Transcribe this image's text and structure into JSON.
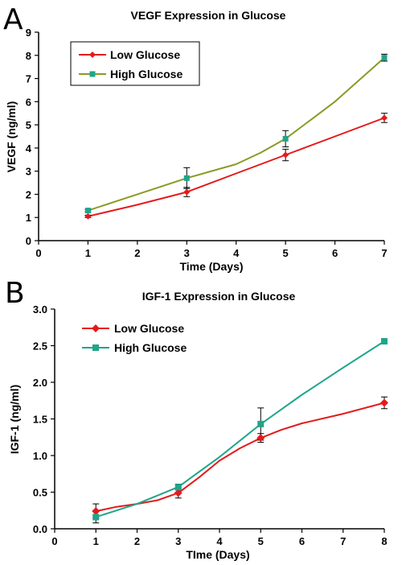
{
  "panels": [
    {
      "letter": "A"
    },
    {
      "letter": "B"
    }
  ],
  "chart_data": [
    {
      "type": "line",
      "title": "VEGF Expression in Glucose",
      "xlabel": "Time (Days)",
      "ylabel": "VEGF (ng/ml)",
      "xlim": [
        0,
        7
      ],
      "ylim": [
        0,
        9
      ],
      "xticks": [
        "0",
        "1",
        "2",
        "3",
        "4",
        "5",
        "6",
        "7"
      ],
      "yticks": [
        "0",
        "1",
        "2",
        "3",
        "4",
        "5",
        "6",
        "7",
        "8",
        "9"
      ],
      "grid": false,
      "legend": "top-left",
      "series": [
        {
          "name": "Low Glucose",
          "color": "#e41a1c",
          "marker": "diamond",
          "x": [
            1,
            3,
            5,
            7
          ],
          "y": [
            1.05,
            2.1,
            3.7,
            5.3
          ],
          "err": [
            0.05,
            0.2,
            0.25,
            0.2
          ],
          "curve": [
            [
              1,
              1.05
            ],
            [
              2,
              1.55
            ],
            [
              3,
              2.1
            ],
            [
              4,
              2.9
            ],
            [
              5,
              3.7
            ],
            [
              6,
              4.5
            ],
            [
              7,
              5.3
            ]
          ]
        },
        {
          "name": "High Glucose",
          "color": "#8a9a26",
          "marker": "square",
          "x": [
            1,
            3,
            5,
            7
          ],
          "y": [
            1.3,
            2.7,
            4.4,
            7.9
          ],
          "err": [
            0.05,
            0.45,
            0.35,
            0.15
          ],
          "curve": [
            [
              1,
              1.3
            ],
            [
              2,
              2.0
            ],
            [
              3,
              2.7
            ],
            [
              4,
              3.3
            ],
            [
              4.5,
              3.8
            ],
            [
              5,
              4.4
            ],
            [
              5.5,
              5.2
            ],
            [
              6,
              6.0
            ],
            [
              6.5,
              6.95
            ],
            [
              7,
              7.9
            ]
          ]
        }
      ]
    },
    {
      "type": "line",
      "title": "IGF-1 Expression in Glucose",
      "xlabel": "TIme (Days)",
      "ylabel": "IGF-1 (ng/ml)",
      "xlim": [
        0,
        8
      ],
      "ylim": [
        0,
        3.0
      ],
      "xticks": [
        "0",
        "1",
        "2",
        "3",
        "4",
        "5",
        "6",
        "7",
        "8"
      ],
      "yticks": [
        "0.0",
        "0.5",
        "1.0",
        "1.5",
        "2.0",
        "2.5",
        "3.0"
      ],
      "grid": false,
      "legend": "top-left",
      "series": [
        {
          "name": "Low Glucose",
          "color": "#e41a1c",
          "marker": "diamond",
          "x": [
            1,
            3,
            5,
            8
          ],
          "y": [
            0.24,
            0.49,
            1.24,
            1.72
          ],
          "err": [
            0.1,
            0.07,
            0.06,
            0.08
          ],
          "curve": [
            [
              1,
              0.24
            ],
            [
              1.5,
              0.3
            ],
            [
              2,
              0.34
            ],
            [
              2.5,
              0.39
            ],
            [
              3,
              0.49
            ],
            [
              3.5,
              0.7
            ],
            [
              4,
              0.93
            ],
            [
              4.5,
              1.1
            ],
            [
              5,
              1.24
            ],
            [
              5.5,
              1.35
            ],
            [
              6,
              1.44
            ],
            [
              7,
              1.57
            ],
            [
              8,
              1.72
            ]
          ]
        },
        {
          "name": "High Glucose",
          "color": "#1fa58a",
          "marker": "square",
          "x": [
            1,
            3,
            5,
            8
          ],
          "y": [
            0.16,
            0.57,
            1.43,
            2.56
          ],
          "err": [
            0.08,
            0.04,
            0.22,
            0.02
          ],
          "curve": [
            [
              1,
              0.16
            ],
            [
              2,
              0.34
            ],
            [
              3,
              0.57
            ],
            [
              4,
              0.98
            ],
            [
              5,
              1.43
            ],
            [
              6,
              1.83
            ],
            [
              7,
              2.2
            ],
            [
              8,
              2.56
            ]
          ]
        }
      ]
    }
  ]
}
